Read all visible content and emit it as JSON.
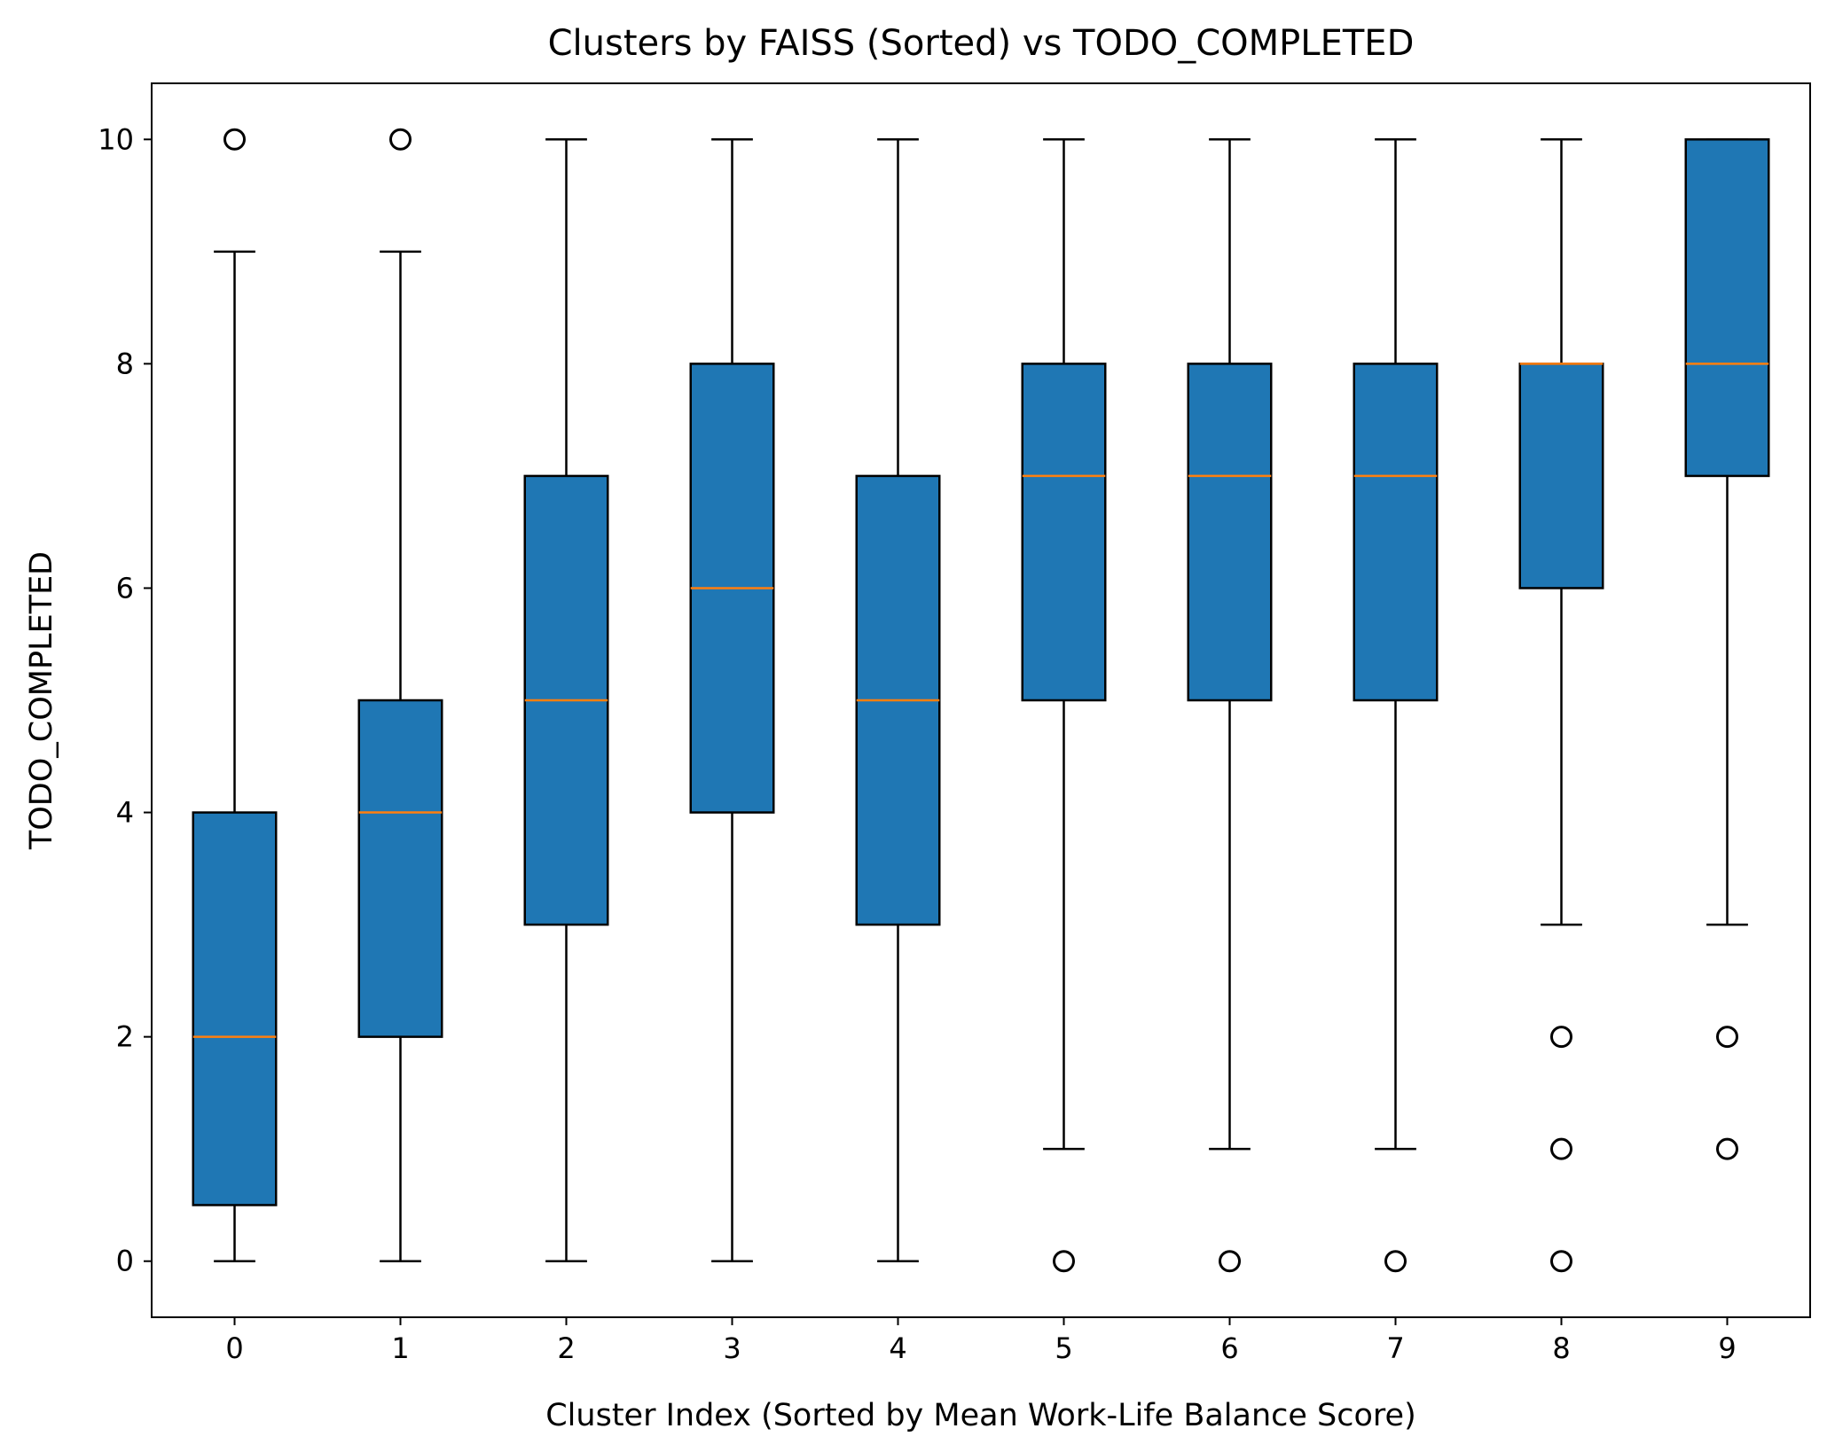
{
  "chart_data": {
    "type": "box",
    "title": "Clusters by FAISS (Sorted) vs TODO_COMPLETED",
    "xlabel": "Cluster Index (Sorted by Mean Work-Life Balance Score)",
    "ylabel": "TODO_COMPLETED",
    "ylim": [
      -0.5,
      10.5
    ],
    "yticks": [
      0,
      2,
      4,
      6,
      8,
      10
    ],
    "grid": false,
    "legend": "none",
    "colors": {
      "box": "#1f77b4",
      "median": "#ff7f0e",
      "line": "#000000"
    },
    "categories": [
      "0",
      "1",
      "2",
      "3",
      "4",
      "5",
      "6",
      "7",
      "8",
      "9"
    ],
    "boxes": [
      {
        "category": "0",
        "whisker_low": 0,
        "q1": 0.5,
        "median": 2,
        "q3": 4,
        "whisker_high": 9,
        "outliers": [
          10
        ]
      },
      {
        "category": "1",
        "whisker_low": 0,
        "q1": 2,
        "median": 4,
        "q3": 5,
        "whisker_high": 9,
        "outliers": [
          10
        ]
      },
      {
        "category": "2",
        "whisker_low": 0,
        "q1": 3,
        "median": 5,
        "q3": 7,
        "whisker_high": 10,
        "outliers": []
      },
      {
        "category": "3",
        "whisker_low": 0,
        "q1": 4,
        "median": 6,
        "q3": 8,
        "whisker_high": 10,
        "outliers": []
      },
      {
        "category": "4",
        "whisker_low": 0,
        "q1": 3,
        "median": 5,
        "q3": 7,
        "whisker_high": 10,
        "outliers": []
      },
      {
        "category": "5",
        "whisker_low": 1,
        "q1": 5,
        "median": 7,
        "q3": 8,
        "whisker_high": 10,
        "outliers": [
          0
        ]
      },
      {
        "category": "6",
        "whisker_low": 1,
        "q1": 5,
        "median": 7,
        "q3": 8,
        "whisker_high": 10,
        "outliers": [
          0
        ]
      },
      {
        "category": "7",
        "whisker_low": 1,
        "q1": 5,
        "median": 7,
        "q3": 8,
        "whisker_high": 10,
        "outliers": [
          0
        ]
      },
      {
        "category": "8",
        "whisker_low": 3,
        "q1": 6,
        "median": 8,
        "q3": 8,
        "whisker_high": 10,
        "outliers": [
          2,
          1,
          0
        ]
      },
      {
        "category": "9",
        "whisker_low": 3,
        "q1": 7,
        "median": 8,
        "q3": 10,
        "whisker_high": 10,
        "outliers": [
          2,
          1
        ]
      }
    ]
  }
}
